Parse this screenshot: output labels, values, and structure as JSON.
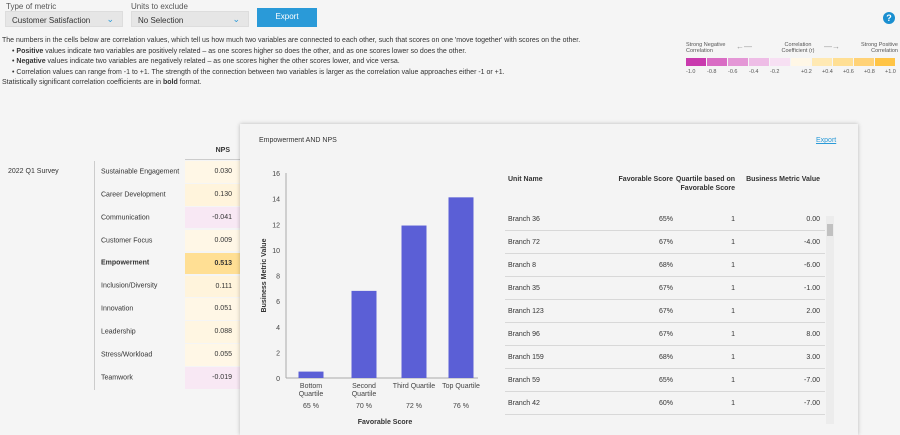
{
  "filters": {
    "metric_label": "Type of metric",
    "metric_value": "Customer Satisfaction",
    "units_label": "Units to exclude",
    "units_value": "No Selection",
    "export_label": "Export"
  },
  "help_icon": "?",
  "description": {
    "intro": "The numbers in the cells below are correlation values, which tell us how much two variables are connected to each other, such that scores on one 'move together' with scores on the other.",
    "positive_bold": "Positive",
    "positive_rest": " values indicate two variables are positively related – as one scores higher so does the other, and as one scores lower so does the other.",
    "negative_bold": "Negative",
    "negative_rest": " values indicate two variables are negatively related – as one scores higher the other scores lower, and vice versa.",
    "range": "Correlation values can range from -1 to +1. The strength of the connection between two variables is larger as the correlation value approaches either -1 or +1.",
    "sig_pre": "Statistically significant correlation coefficients are in ",
    "sig_bold": "bold",
    "sig_post": " format."
  },
  "legend": {
    "neg_label": "Strong Negative Correlation",
    "mid_label": "Correlation Coefficient (r)",
    "pos_label": "Strong Positive Correlation",
    "ticks": [
      "-1.0",
      "-0.8",
      "-0.6",
      "-0.4",
      "-0.2",
      "+0.2",
      "+0.4",
      "+0.6",
      "+0.8",
      "+1.0"
    ],
    "colors": [
      "#c93aae",
      "#d96cc4",
      "#e497d6",
      "#eebde6",
      "#f7e0f3",
      "#fff7e6",
      "#ffe9b3",
      "#ffdf94",
      "#ffd277",
      "#ffc445"
    ]
  },
  "correlation": {
    "survey": "2022 Q1 Survey",
    "column": "NPS",
    "rows": [
      {
        "name": "Sustainable Engagement",
        "value": "0.030",
        "color": "#fff7e6",
        "bold": false
      },
      {
        "name": "Career Development",
        "value": "0.130",
        "color": "#fff4dc",
        "bold": false
      },
      {
        "name": "Communication",
        "value": "-0.041",
        "color": "#f8e8f4",
        "bold": false
      },
      {
        "name": "Customer Focus",
        "value": "0.009",
        "color": "#fff7e6",
        "bold": false
      },
      {
        "name": "Empowerment",
        "value": "0.513",
        "color": "#ffdf94",
        "bold": true
      },
      {
        "name": "Inclusion/Diversity",
        "value": "0.111",
        "color": "#fff4dc",
        "bold": false
      },
      {
        "name": "Innovation",
        "value": "0.051",
        "color": "#fff7e6",
        "bold": false
      },
      {
        "name": "Leadership",
        "value": "0.088",
        "color": "#fff6e2",
        "bold": false
      },
      {
        "name": "Stress/Workload",
        "value": "0.055",
        "color": "#fff7e6",
        "bold": false
      },
      {
        "name": "Teamwork",
        "value": "-0.019",
        "color": "#f8e8f4",
        "bold": false
      }
    ]
  },
  "panel": {
    "title": "Empowerment AND NPS",
    "export_link": "Export"
  },
  "chart_data": {
    "type": "bar",
    "title": "Empowerment AND NPS",
    "xlabel": "Favorable Score",
    "ylabel": "Business Metric Value",
    "ylim": [
      0,
      16
    ],
    "yticks": [
      "0",
      "2",
      "4",
      "6",
      "8",
      "10",
      "12",
      "14",
      "16"
    ],
    "categories": [
      "Bottom Quartile",
      "Second Quartile",
      "Third Quartile",
      "Top Quartile"
    ],
    "category_lines": [
      [
        "Bottom",
        "Quartile"
      ],
      [
        "Second",
        "Quartile"
      ],
      [
        "Third Quartile",
        ""
      ],
      [
        "Top Quartile",
        ""
      ]
    ],
    "scores": [
      "65 %",
      "70 %",
      "72 %",
      "76 %"
    ],
    "values": [
      0.5,
      6.8,
      11.9,
      14.1
    ],
    "color": "#5b5fd6"
  },
  "units_table": {
    "headers": [
      "Unit Name",
      "Favorable Score",
      "Quartile based on Favorable Score",
      "Business Metric Value"
    ],
    "rows": [
      [
        "Branch 36",
        "65%",
        "1",
        "0.00"
      ],
      [
        "Branch 72",
        "67%",
        "1",
        "-4.00"
      ],
      [
        "Branch 8",
        "68%",
        "1",
        "-6.00"
      ],
      [
        "Branch 35",
        "67%",
        "1",
        "-1.00"
      ],
      [
        "Branch 123",
        "67%",
        "1",
        "2.00"
      ],
      [
        "Branch 96",
        "67%",
        "1",
        "8.00"
      ],
      [
        "Branch 159",
        "68%",
        "1",
        "3.00"
      ],
      [
        "Branch 59",
        "65%",
        "1",
        "-7.00"
      ],
      [
        "Branch 42",
        "60%",
        "1",
        "-7.00"
      ]
    ]
  }
}
